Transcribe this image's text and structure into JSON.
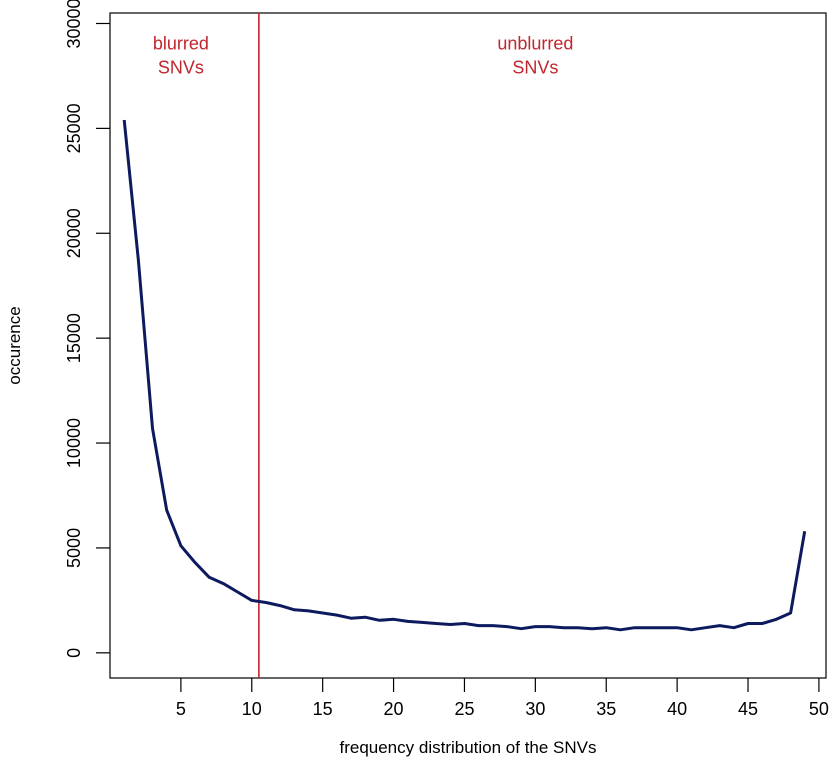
{
  "chart_data": {
    "type": "line",
    "title": "",
    "xlabel": "frequency distribution of the SNVs",
    "ylabel": "occurence",
    "xlim": [
      0,
      50.5
    ],
    "ylim": [
      -1200,
      30500
    ],
    "xticks": [
      5,
      10,
      15,
      20,
      25,
      30,
      35,
      40,
      45,
      50
    ],
    "yticks": [
      0,
      5000,
      10000,
      15000,
      20000,
      25000,
      30000
    ],
    "grid": false,
    "series": [
      {
        "color": "#0d1a5e",
        "points": [
          [
            1,
            25400
          ],
          [
            2,
            18700
          ],
          [
            3,
            10700
          ],
          [
            4,
            6800
          ],
          [
            5,
            5100
          ],
          [
            6,
            4300
          ],
          [
            7,
            3600
          ],
          [
            8,
            3300
          ],
          [
            9,
            2900
          ],
          [
            10,
            2500
          ],
          [
            11,
            2400
          ],
          [
            12,
            2250
          ],
          [
            13,
            2050
          ],
          [
            14,
            2000
          ],
          [
            15,
            1900
          ],
          [
            16,
            1800
          ],
          [
            17,
            1650
          ],
          [
            18,
            1700
          ],
          [
            19,
            1550
          ],
          [
            20,
            1600
          ],
          [
            21,
            1500
          ],
          [
            22,
            1450
          ],
          [
            23,
            1400
          ],
          [
            24,
            1350
          ],
          [
            25,
            1400
          ],
          [
            26,
            1300
          ],
          [
            27,
            1300
          ],
          [
            28,
            1250
          ],
          [
            29,
            1150
          ],
          [
            30,
            1250
          ],
          [
            31,
            1250
          ],
          [
            32,
            1200
          ],
          [
            33,
            1200
          ],
          [
            34,
            1150
          ],
          [
            35,
            1200
          ],
          [
            36,
            1100
          ],
          [
            37,
            1200
          ],
          [
            38,
            1200
          ],
          [
            39,
            1200
          ],
          [
            40,
            1200
          ],
          [
            41,
            1100
          ],
          [
            42,
            1200
          ],
          [
            43,
            1300
          ],
          [
            44,
            1200
          ],
          [
            45,
            1400
          ],
          [
            46,
            1400
          ],
          [
            47,
            1600
          ],
          [
            48,
            1900
          ],
          [
            49,
            5800
          ]
        ]
      }
    ],
    "divider": {
      "x": 10.5,
      "color": "#c0262d"
    },
    "annotations": [
      {
        "lines": [
          "blurred",
          "SNVs"
        ],
        "x": 5,
        "y": 28000,
        "color": "#c0262d"
      },
      {
        "lines": [
          "unblurred",
          "SNVs"
        ],
        "x": 30,
        "y": 28000,
        "color": "#c0262d"
      }
    ]
  }
}
